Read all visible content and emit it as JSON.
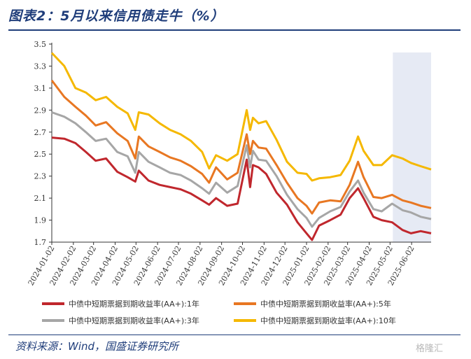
{
  "header": {
    "title": "图表2：5月以来信用债走牛（%）"
  },
  "footer": {
    "source": "资料来源：Wind，国盛证券研究所",
    "watermark": "格隆汇"
  },
  "chart_data": {
    "type": "line",
    "title": "",
    "xlabel": "",
    "ylabel": "",
    "ylim": [
      1.7,
      3.5
    ],
    "yticks": [
      "3.5",
      "3.3",
      "3.1",
      "2.9",
      "2.7",
      "2.5",
      "2.3",
      "2.1",
      "1.9",
      "1.7"
    ],
    "xlim": [
      "2024-01-02",
      "2025-06-30"
    ],
    "xticks": [
      "2024-01-02",
      "2024-02-02",
      "2024-03-02",
      "2024-04-02",
      "2024-05-02",
      "2024-06-02",
      "2024-07-02",
      "2024-08-02",
      "2024-09-02",
      "2024-10-02",
      "2024-11-02",
      "2024-12-02",
      "2025-01-02",
      "2025-02-02",
      "2025-03-02",
      "2025-04-02",
      "2025-05-02",
      "2025-06-02"
    ],
    "shaded_region": {
      "from": "2025-05-06",
      "to": "2025-06-30",
      "color": "#e6eaf4"
    },
    "grid": false,
    "legend_position": "bottom",
    "series": [
      {
        "name": "中债中短期票据到期收益率(AA+):1年",
        "color": "#c0272d",
        "points": [
          [
            "2024-01-02",
            2.65
          ],
          [
            "2024-01-20",
            2.64
          ],
          [
            "2024-02-05",
            2.6
          ],
          [
            "2024-02-20",
            2.52
          ],
          [
            "2024-03-05",
            2.44
          ],
          [
            "2024-03-20",
            2.46
          ],
          [
            "2024-04-05",
            2.34
          ],
          [
            "2024-04-20",
            2.29
          ],
          [
            "2024-05-01",
            2.25
          ],
          [
            "2024-05-06",
            2.35
          ],
          [
            "2024-05-20",
            2.26
          ],
          [
            "2024-06-05",
            2.22
          ],
          [
            "2024-06-20",
            2.2
          ],
          [
            "2024-07-05",
            2.18
          ],
          [
            "2024-07-20",
            2.14
          ],
          [
            "2024-08-05",
            2.08
          ],
          [
            "2024-08-15",
            2.04
          ],
          [
            "2024-08-25",
            2.1
          ],
          [
            "2024-09-10",
            2.03
          ],
          [
            "2024-09-25",
            2.05
          ],
          [
            "2024-10-08",
            2.45
          ],
          [
            "2024-10-13",
            2.2
          ],
          [
            "2024-10-17",
            2.4
          ],
          [
            "2024-10-25",
            2.38
          ],
          [
            "2024-11-05",
            2.32
          ],
          [
            "2024-11-20",
            2.15
          ],
          [
            "2024-12-05",
            2.04
          ],
          [
            "2024-12-20",
            1.88
          ],
          [
            "2025-01-02",
            1.78
          ],
          [
            "2025-01-10",
            1.72
          ],
          [
            "2025-01-20",
            1.85
          ],
          [
            "2025-02-05",
            1.9
          ],
          [
            "2025-02-20",
            1.95
          ],
          [
            "2025-03-05",
            2.1
          ],
          [
            "2025-03-17",
            2.19
          ],
          [
            "2025-03-25",
            2.1
          ],
          [
            "2025-04-08",
            1.93
          ],
          [
            "2025-04-20",
            1.9
          ],
          [
            "2025-05-05",
            1.88
          ],
          [
            "2025-05-20",
            1.81
          ],
          [
            "2025-06-01",
            1.78
          ],
          [
            "2025-06-15",
            1.8
          ],
          [
            "2025-06-30",
            1.78
          ]
        ]
      },
      {
        "name": "中债中短期票据到期收益率(AA+):3年",
        "color": "#a6a6a6",
        "points": [
          [
            "2024-01-02",
            2.88
          ],
          [
            "2024-01-20",
            2.84
          ],
          [
            "2024-02-05",
            2.78
          ],
          [
            "2024-02-20",
            2.7
          ],
          [
            "2024-03-05",
            2.62
          ],
          [
            "2024-03-20",
            2.64
          ],
          [
            "2024-04-05",
            2.52
          ],
          [
            "2024-04-20",
            2.48
          ],
          [
            "2024-05-01",
            2.33
          ],
          [
            "2024-05-06",
            2.52
          ],
          [
            "2024-05-20",
            2.43
          ],
          [
            "2024-06-05",
            2.38
          ],
          [
            "2024-06-20",
            2.33
          ],
          [
            "2024-07-05",
            2.31
          ],
          [
            "2024-07-20",
            2.26
          ],
          [
            "2024-08-05",
            2.19
          ],
          [
            "2024-08-15",
            2.14
          ],
          [
            "2024-08-25",
            2.24
          ],
          [
            "2024-09-10",
            2.15
          ],
          [
            "2024-09-25",
            2.21
          ],
          [
            "2024-10-08",
            2.58
          ],
          [
            "2024-10-13",
            2.38
          ],
          [
            "2024-10-17",
            2.53
          ],
          [
            "2024-10-25",
            2.45
          ],
          [
            "2024-11-05",
            2.44
          ],
          [
            "2024-11-20",
            2.3
          ],
          [
            "2024-12-05",
            2.13
          ],
          [
            "2024-12-20",
            2.0
          ],
          [
            "2025-01-02",
            1.92
          ],
          [
            "2025-01-10",
            1.84
          ],
          [
            "2025-01-20",
            1.92
          ],
          [
            "2025-02-05",
            1.98
          ],
          [
            "2025-02-20",
            2.02
          ],
          [
            "2025-03-05",
            2.16
          ],
          [
            "2025-03-17",
            2.26
          ],
          [
            "2025-03-25",
            2.15
          ],
          [
            "2025-04-08",
            2.0
          ],
          [
            "2025-04-20",
            1.98
          ],
          [
            "2025-05-05",
            2.05
          ],
          [
            "2025-05-20",
            1.99
          ],
          [
            "2025-06-01",
            1.97
          ],
          [
            "2025-06-15",
            1.93
          ],
          [
            "2025-06-30",
            1.91
          ]
        ]
      },
      {
        "name": "中债中短期票据到期收益率(AA+):5年",
        "color": "#e87722",
        "points": [
          [
            "2024-01-02",
            3.17
          ],
          [
            "2024-01-20",
            3.02
          ],
          [
            "2024-02-05",
            2.93
          ],
          [
            "2024-02-20",
            2.85
          ],
          [
            "2024-03-05",
            2.76
          ],
          [
            "2024-03-20",
            2.79
          ],
          [
            "2024-04-05",
            2.69
          ],
          [
            "2024-04-20",
            2.62
          ],
          [
            "2024-05-01",
            2.46
          ],
          [
            "2024-05-06",
            2.66
          ],
          [
            "2024-05-20",
            2.57
          ],
          [
            "2024-06-05",
            2.52
          ],
          [
            "2024-06-20",
            2.47
          ],
          [
            "2024-07-05",
            2.44
          ],
          [
            "2024-07-20",
            2.39
          ],
          [
            "2024-08-05",
            2.32
          ],
          [
            "2024-08-15",
            2.24
          ],
          [
            "2024-08-25",
            2.38
          ],
          [
            "2024-09-10",
            2.27
          ],
          [
            "2024-09-25",
            2.33
          ],
          [
            "2024-10-08",
            2.68
          ],
          [
            "2024-10-13",
            2.5
          ],
          [
            "2024-10-17",
            2.62
          ],
          [
            "2024-10-25",
            2.56
          ],
          [
            "2024-11-05",
            2.55
          ],
          [
            "2024-11-20",
            2.4
          ],
          [
            "2024-12-05",
            2.24
          ],
          [
            "2024-12-20",
            2.1
          ],
          [
            "2025-01-02",
            2.03
          ],
          [
            "2025-01-10",
            1.96
          ],
          [
            "2025-01-20",
            2.06
          ],
          [
            "2025-02-05",
            2.08
          ],
          [
            "2025-02-20",
            2.07
          ],
          [
            "2025-03-05",
            2.22
          ],
          [
            "2025-03-17",
            2.43
          ],
          [
            "2025-03-25",
            2.29
          ],
          [
            "2025-04-08",
            2.11
          ],
          [
            "2025-04-20",
            2.1
          ],
          [
            "2025-05-05",
            2.13
          ],
          [
            "2025-05-20",
            2.08
          ],
          [
            "2025-06-01",
            2.06
          ],
          [
            "2025-06-15",
            2.03
          ],
          [
            "2025-06-30",
            2.01
          ]
        ]
      },
      {
        "name": "中债中短期票据到期收益率(AA+):10年",
        "color": "#f5b800",
        "points": [
          [
            "2024-01-02",
            3.42
          ],
          [
            "2024-01-20",
            3.3
          ],
          [
            "2024-02-05",
            3.1
          ],
          [
            "2024-02-20",
            3.06
          ],
          [
            "2024-03-05",
            2.99
          ],
          [
            "2024-03-20",
            3.02
          ],
          [
            "2024-04-05",
            2.93
          ],
          [
            "2024-04-20",
            2.87
          ],
          [
            "2024-05-01",
            2.72
          ],
          [
            "2024-05-06",
            2.88
          ],
          [
            "2024-05-20",
            2.86
          ],
          [
            "2024-06-05",
            2.78
          ],
          [
            "2024-06-20",
            2.72
          ],
          [
            "2024-07-05",
            2.68
          ],
          [
            "2024-07-20",
            2.62
          ],
          [
            "2024-08-05",
            2.52
          ],
          [
            "2024-08-15",
            2.37
          ],
          [
            "2024-08-25",
            2.49
          ],
          [
            "2024-09-10",
            2.44
          ],
          [
            "2024-09-25",
            2.5
          ],
          [
            "2024-10-08",
            2.9
          ],
          [
            "2024-10-13",
            2.72
          ],
          [
            "2024-10-17",
            2.83
          ],
          [
            "2024-10-25",
            2.78
          ],
          [
            "2024-11-05",
            2.8
          ],
          [
            "2024-11-20",
            2.63
          ],
          [
            "2024-12-05",
            2.43
          ],
          [
            "2024-12-20",
            2.33
          ],
          [
            "2025-01-02",
            2.32
          ],
          [
            "2025-01-10",
            2.26
          ],
          [
            "2025-01-20",
            2.28
          ],
          [
            "2025-02-05",
            2.29
          ],
          [
            "2025-02-20",
            2.31
          ],
          [
            "2025-03-05",
            2.44
          ],
          [
            "2025-03-17",
            2.66
          ],
          [
            "2025-03-25",
            2.53
          ],
          [
            "2025-04-08",
            2.4
          ],
          [
            "2025-04-20",
            2.4
          ],
          [
            "2025-05-05",
            2.49
          ],
          [
            "2025-05-20",
            2.46
          ],
          [
            "2025-06-01",
            2.42
          ],
          [
            "2025-06-15",
            2.39
          ],
          [
            "2025-06-30",
            2.36
          ]
        ]
      }
    ]
  }
}
